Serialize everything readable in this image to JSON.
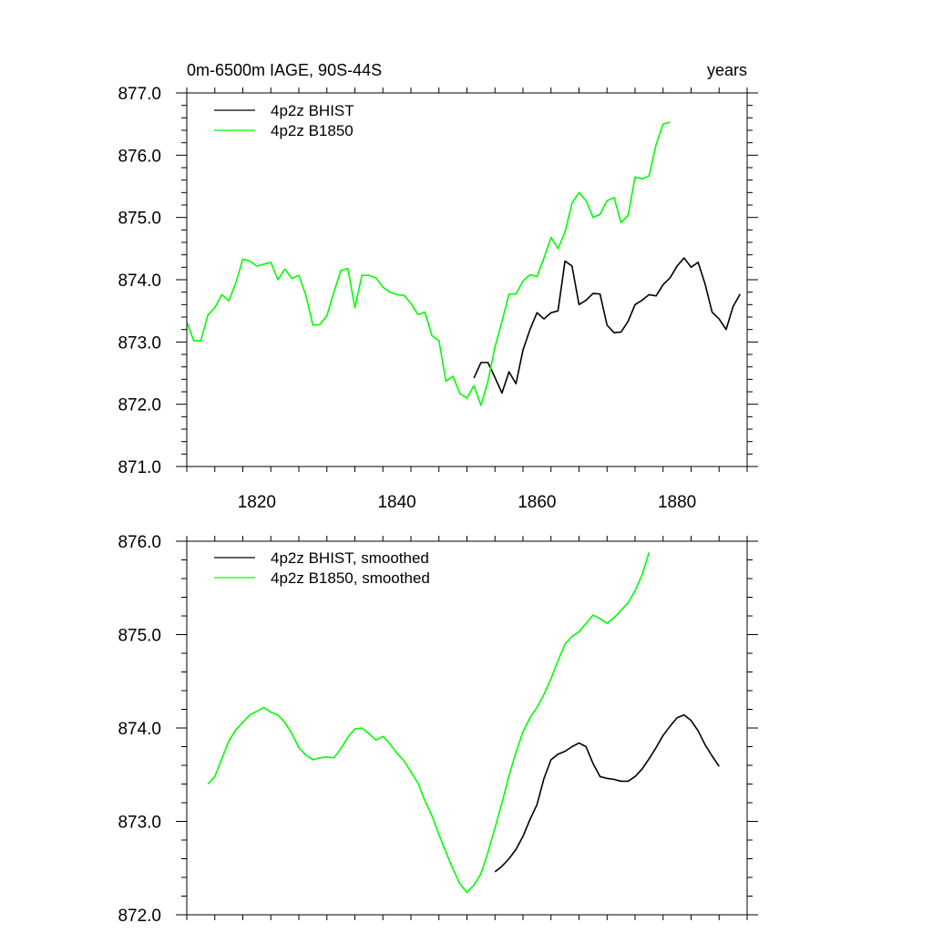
{
  "chart_data": [
    {
      "type": "line",
      "title_left": "0m-6500m IAGE, 90S-44S",
      "title_right": "years",
      "xlabel": "",
      "ylabel": "",
      "xlim": [
        1810,
        1890
      ],
      "ylim": [
        871.0,
        877.0
      ],
      "xticks": [
        "1820",
        "1840",
        "1860",
        "1880"
      ],
      "yticks": [
        "871.0",
        "872.0",
        "873.0",
        "874.0",
        "875.0",
        "876.0",
        "877.0"
      ],
      "grid": false,
      "legend_position": "top-left",
      "series": [
        {
          "name": "4p2z BHIST",
          "color": "#000000",
          "x": [
            1851,
            1852,
            1853,
            1854,
            1855,
            1856,
            1857,
            1858,
            1859,
            1860,
            1861,
            1862,
            1863,
            1864,
            1865,
            1866,
            1867,
            1868,
            1869,
            1870,
            1871,
            1872,
            1873,
            1874,
            1875,
            1876,
            1877,
            1878,
            1879,
            1880,
            1881,
            1882,
            1883,
            1884,
            1885,
            1886,
            1887,
            1888,
            1889
          ],
          "y": [
            872.42,
            872.67,
            872.67,
            872.43,
            872.18,
            872.52,
            872.33,
            872.87,
            873.2,
            873.47,
            873.37,
            873.47,
            873.5,
            874.3,
            874.22,
            873.6,
            873.67,
            873.78,
            873.77,
            873.27,
            873.15,
            873.16,
            873.33,
            873.6,
            873.67,
            873.76,
            873.74,
            873.92,
            874.03,
            874.22,
            874.35,
            874.2,
            874.28,
            873.93,
            873.48,
            873.37,
            873.2,
            873.57,
            873.77
          ]
        },
        {
          "name": "4p2z B1850",
          "color": "#00ff00",
          "x": [
            1810,
            1811,
            1812,
            1813,
            1814,
            1815,
            1816,
            1817,
            1818,
            1819,
            1820,
            1821,
            1822,
            1823,
            1824,
            1825,
            1826,
            1827,
            1828,
            1829,
            1830,
            1831,
            1832,
            1833,
            1834,
            1835,
            1836,
            1837,
            1838,
            1839,
            1840,
            1841,
            1842,
            1843,
            1844,
            1845,
            1846,
            1847,
            1848,
            1849,
            1850,
            1851,
            1852,
            1853,
            1854,
            1855,
            1856,
            1857,
            1858,
            1859,
            1860,
            1861,
            1862,
            1863,
            1864,
            1865,
            1866,
            1867,
            1868,
            1869,
            1870,
            1871,
            1872,
            1873,
            1874,
            1875,
            1876,
            1877,
            1878,
            1879
          ],
          "y": [
            873.32,
            873.02,
            873.02,
            873.43,
            873.55,
            873.76,
            873.66,
            873.95,
            874.33,
            874.3,
            874.22,
            874.25,
            874.28,
            874.0,
            874.17,
            874.02,
            874.07,
            873.75,
            873.27,
            873.28,
            873.42,
            873.8,
            874.15,
            874.18,
            873.55,
            874.07,
            874.07,
            874.03,
            873.88,
            873.8,
            873.76,
            873.75,
            873.62,
            873.44,
            873.48,
            873.1,
            873.02,
            872.37,
            872.45,
            872.17,
            872.1,
            872.3,
            871.98,
            872.37,
            872.92,
            873.33,
            873.77,
            873.77,
            873.98,
            874.08,
            874.05,
            874.35,
            874.68,
            874.5,
            874.77,
            875.23,
            875.4,
            875.27,
            875.0,
            875.05,
            875.27,
            875.32,
            874.92,
            875.03,
            875.65,
            875.62,
            875.67,
            876.17,
            876.5,
            876.53
          ]
        }
      ]
    },
    {
      "type": "line",
      "xlabel": "",
      "ylabel": "",
      "xlim": [
        1810,
        1890
      ],
      "ylim": [
        872.0,
        876.0
      ],
      "yticks": [
        "872.0",
        "873.0",
        "874.0",
        "875.0",
        "876.0"
      ],
      "grid": false,
      "legend_position": "top-left",
      "series": [
        {
          "name": "4p2z BHIST, smoothed",
          "color": "#000000",
          "x": [
            1854,
            1855,
            1856,
            1857,
            1858,
            1859,
            1860,
            1861,
            1862,
            1863,
            1864,
            1865,
            1866,
            1867,
            1868,
            1869,
            1870,
            1871,
            1872,
            1873,
            1874,
            1875,
            1876,
            1877,
            1878,
            1879,
            1880,
            1881,
            1882,
            1883,
            1884,
            1885,
            1886
          ],
          "y": [
            872.46,
            872.52,
            872.6,
            872.7,
            872.84,
            873.02,
            873.18,
            873.46,
            873.66,
            873.72,
            873.75,
            873.8,
            873.84,
            873.8,
            873.62,
            873.48,
            873.46,
            873.45,
            873.43,
            873.43,
            873.48,
            873.56,
            873.67,
            873.79,
            873.92,
            874.02,
            874.11,
            874.14,
            874.08,
            873.97,
            873.82,
            873.7,
            873.59
          ]
        },
        {
          "name": "4p2z B1850, smoothed",
          "color": "#00ff00",
          "x": [
            1813,
            1814,
            1815,
            1816,
            1817,
            1818,
            1819,
            1820,
            1821,
            1822,
            1823,
            1824,
            1825,
            1826,
            1827,
            1828,
            1829,
            1830,
            1831,
            1832,
            1833,
            1834,
            1835,
            1836,
            1837,
            1838,
            1839,
            1840,
            1841,
            1842,
            1843,
            1844,
            1845,
            1846,
            1847,
            1848,
            1849,
            1850,
            1851,
            1852,
            1853,
            1854,
            1855,
            1856,
            1857,
            1858,
            1859,
            1860,
            1861,
            1862,
            1863,
            1864,
            1865,
            1866,
            1867,
            1868,
            1869,
            1870,
            1871,
            1872,
            1873,
            1874,
            1875,
            1876
          ],
          "y": [
            873.4,
            873.48,
            873.67,
            873.86,
            873.98,
            874.06,
            874.14,
            874.18,
            874.22,
            874.17,
            874.14,
            874.06,
            873.94,
            873.79,
            873.71,
            873.66,
            873.68,
            873.69,
            873.68,
            873.78,
            873.9,
            873.99,
            874.0,
            873.94,
            873.87,
            873.91,
            873.83,
            873.73,
            873.65,
            873.53,
            873.41,
            873.22,
            873.06,
            872.86,
            872.67,
            872.49,
            872.33,
            872.24,
            872.32,
            872.44,
            872.67,
            872.93,
            873.2,
            873.49,
            873.74,
            873.96,
            874.11,
            874.22,
            874.36,
            874.53,
            874.72,
            874.9,
            874.98,
            875.03,
            875.12,
            875.21,
            875.17,
            875.12,
            875.18,
            875.26,
            875.34,
            875.47,
            875.64,
            875.88
          ]
        }
      ]
    }
  ]
}
